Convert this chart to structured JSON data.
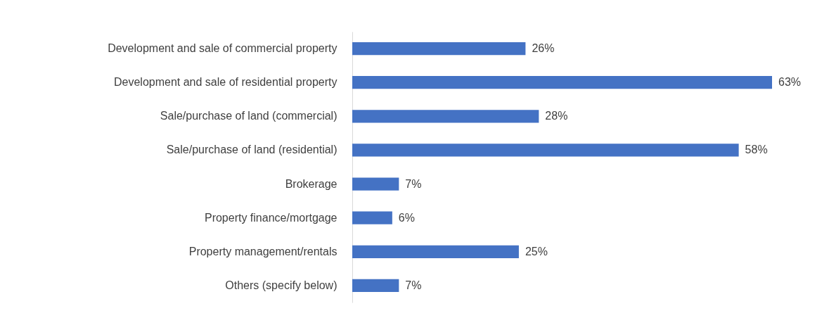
{
  "chart_data": {
    "type": "bar",
    "orientation": "horizontal",
    "categories": [
      "Development and sale of commercial property",
      "Development and sale of residential property",
      "Sale/purchase of land (commercial)",
      "Sale/purchase of land (residential)",
      "Brokerage",
      "Property finance/mortgage",
      "Property management/rentals",
      "Others (specify below)"
    ],
    "values": [
      26,
      63,
      28,
      58,
      7,
      6,
      25,
      7
    ],
    "value_labels": [
      "26%",
      "63%",
      "28%",
      "58%",
      "7%",
      "6%",
      "25%",
      "7%"
    ],
    "color": "#4472c4"
  }
}
